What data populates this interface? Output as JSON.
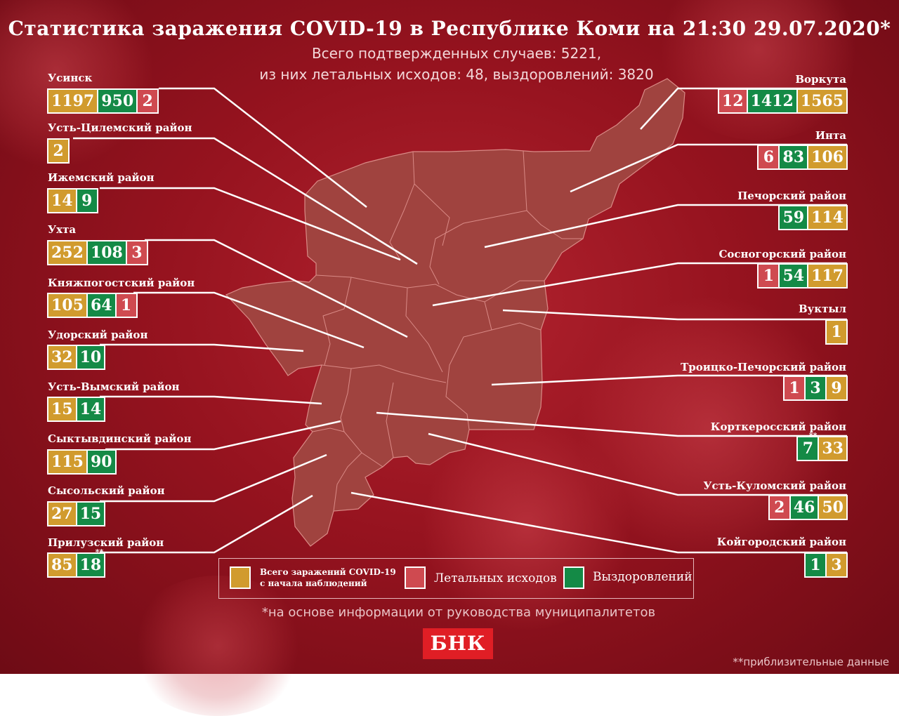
{
  "title": "Статистика заражения COVID-19 в Республике Коми на 21:30 29.07.2020*",
  "subtitle_line1": "Всего подтвержденных случаев: 5221,",
  "subtitle_line2": "из них летальных исходов: 48, выздоровлений: 3820",
  "colors": {
    "cases": "#d19b2e",
    "deaths": "#cf4a50",
    "recovered": "#148a46",
    "map": "#a0433f"
  },
  "left_districts": [
    {
      "name": "Усинск",
      "cases": "1197",
      "recovered": "950",
      "deaths": "2"
    },
    {
      "name": "Усть-Цилемский район",
      "cases": "2"
    },
    {
      "name": "Ижемский район",
      "cases": "14",
      "recovered": "9"
    },
    {
      "name": "Ухта",
      "cases": "252",
      "recovered": "108",
      "deaths": "3"
    },
    {
      "name": "Княжпогостский район",
      "cases": "105",
      "recovered": "64",
      "deaths": "1"
    },
    {
      "name": "Удорский район",
      "cases": "32",
      "recovered": "10"
    },
    {
      "name": "Усть-Вымский район",
      "cases": "15",
      "recovered": "14"
    },
    {
      "name": "Сыктывдинский район",
      "cases": "115",
      "recovered": "90"
    },
    {
      "name": "Сысольский район",
      "cases": "27",
      "recovered": "15"
    },
    {
      "name": "Прилузский район",
      "cases": "85",
      "recovered": "18",
      "recovered_mark": "**"
    }
  ],
  "right_districts": [
    {
      "name": "Воркута",
      "deaths": "12",
      "recovered": "1412",
      "cases": "1565"
    },
    {
      "name": "Инта",
      "deaths": "6",
      "recovered": "83",
      "cases": "106"
    },
    {
      "name": "Печорский район",
      "recovered": "59",
      "cases": "114"
    },
    {
      "name": "Сосногорский район",
      "deaths": "1",
      "recovered": "54",
      "cases": "117"
    },
    {
      "name": "Вуктыл",
      "cases": "1"
    },
    {
      "name": "Троицко-Печорский район",
      "deaths": "1",
      "recovered": "3",
      "cases": "9"
    },
    {
      "name": "Корткеросский район",
      "recovered": "7",
      "recovered_mark": "**",
      "cases": "33"
    },
    {
      "name": "Усть-Куломский район",
      "deaths": "2",
      "recovered": "46",
      "cases": "50"
    },
    {
      "name": "Койгородский район",
      "recovered": "1",
      "cases": "3"
    }
  ],
  "legend": {
    "cases_line1": "Всего заражений COVID-19",
    "cases_line2": "с начала наблюдений",
    "deaths": "Летальных исходов",
    "recovered": "Выздоровлений"
  },
  "footnote": "*на основе информации от руководства муниципалитетов",
  "logo": "БНК",
  "footnote2": "**приблизительные данные"
}
